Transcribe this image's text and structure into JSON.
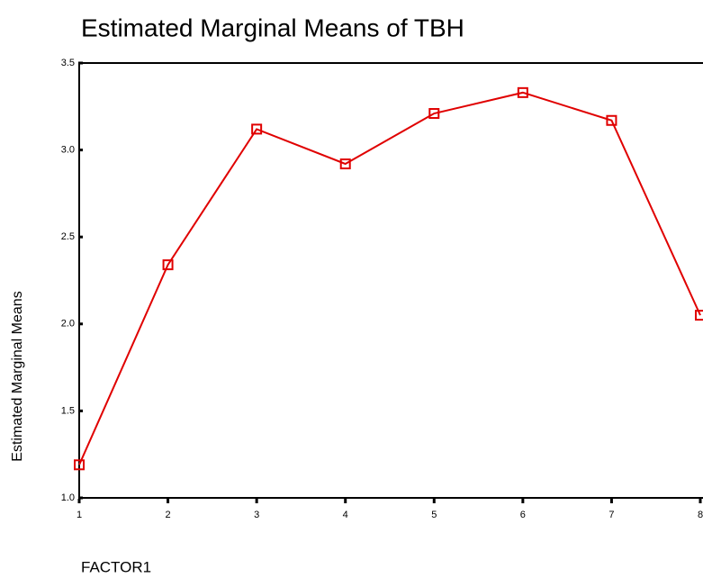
{
  "chart_data": {
    "type": "line",
    "title": "Estimated Marginal Means of TBH",
    "x_label": "FACTOR1",
    "y_label": "Estimated Marginal Means",
    "x": [
      1,
      2,
      3,
      4,
      5,
      6,
      7,
      8
    ],
    "values": [
      1.19,
      2.34,
      3.12,
      2.92,
      3.21,
      3.33,
      3.17,
      2.05
    ],
    "color": "#e00000",
    "marker": "square",
    "xlim": [
      1,
      8
    ],
    "xticks": [
      1,
      2,
      3,
      4,
      5,
      6,
      7,
      8
    ],
    "ylim": [
      1,
      3.5
    ],
    "yticks": [
      {
        "value": 1,
        "label": "1.0"
      },
      1.5,
      {
        "value": 2,
        "label": "2.0"
      },
      2.5,
      {
        "value": 3,
        "label": "3.0"
      },
      3.5
    ]
  }
}
